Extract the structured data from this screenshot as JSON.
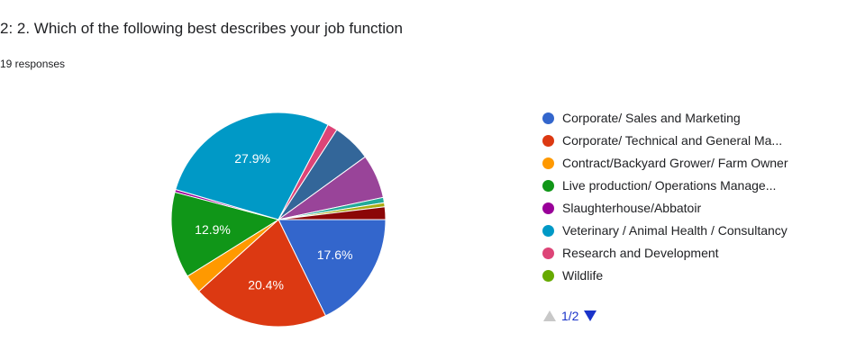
{
  "question": {
    "title": "2: 2. Which of the following best describes your job function",
    "responses": "19 responses"
  },
  "pager": {
    "text": "1/2",
    "prev_icon": "triangle-up-icon",
    "next_icon": "triangle-down-icon",
    "active_color": "#1a33c9",
    "disabled_color": "#c8c8c8"
  },
  "chart_data": {
    "type": "pie",
    "title": "",
    "slices": [
      {
        "label": "Corporate/ Sales and Marketing",
        "value": 17.6,
        "color": "#3366cc",
        "data_label": "17.6%"
      },
      {
        "label": "Corporate/ Technical and General Ma...",
        "value": 20.4,
        "color": "#dc3912",
        "data_label": "20.4%"
      },
      {
        "label": "Contract/Backyard Grower/ Farm Owner",
        "value": 2.8,
        "color": "#ff9900",
        "data_label": ""
      },
      {
        "label": "Live production/ Operations Manage...",
        "value": 12.9,
        "color": "#109618",
        "data_label": "12.9%"
      },
      {
        "label": "",
        "value": 0.4,
        "color": "#990099",
        "data_label": ""
      },
      {
        "label": "Veterinary / Animal Health / Consultancy",
        "value": 27.9,
        "color": "#0099c6",
        "data_label": "27.9%"
      },
      {
        "label": "Research and Development",
        "value": 1.5,
        "color": "#dd4477",
        "data_label": ""
      },
      {
        "label": "",
        "value": 5.8,
        "color": "#336699",
        "data_label": ""
      },
      {
        "label": "",
        "value": 6.6,
        "color": "#994499",
        "data_label": ""
      },
      {
        "label": "",
        "value": 0.8,
        "color": "#22aa99",
        "data_label": ""
      },
      {
        "label": "",
        "value": 0.6,
        "color": "#aaaa11",
        "data_label": ""
      },
      {
        "label": "",
        "value": 1.9,
        "color": "#8b0707",
        "data_label": ""
      }
    ],
    "legend": {
      "position": "right",
      "items": [
        {
          "label": "Corporate/ Sales and Marketing",
          "color": "#3366cc"
        },
        {
          "label": "Corporate/ Technical and General Ma...",
          "color": "#dc3912"
        },
        {
          "label": "Contract/Backyard Grower/ Farm Owner",
          "color": "#ff9900"
        },
        {
          "label": "Live production/ Operations Manage...",
          "color": "#109618"
        },
        {
          "label": "Slaughterhouse/Abbatoir",
          "color": "#990099"
        },
        {
          "label": "Veterinary / Animal Health / Consultancy",
          "color": "#0099c6"
        },
        {
          "label": "Research and Development",
          "color": "#dd4477"
        },
        {
          "label": "Wildlife",
          "color": "#66aa00"
        }
      ]
    }
  }
}
